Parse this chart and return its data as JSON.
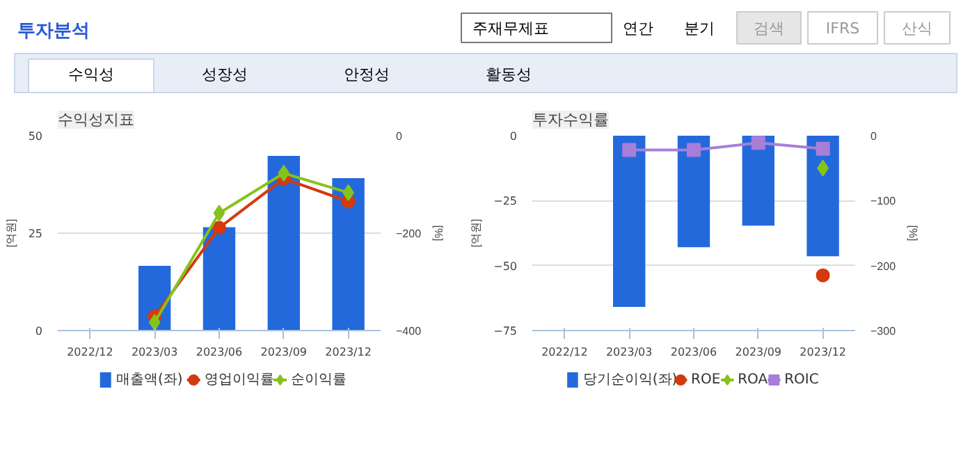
{
  "chart_data": [
    {
      "type": "other",
      "title": "투자분석",
      "annotations": [
        "주재무제표",
        "연간",
        "분기",
        "검색",
        "IFRS",
        "산식",
        "수익성",
        "성장성",
        "안정성",
        "활동성"
      ]
    },
    {
      "type": "bar",
      "title": "수익성지표",
      "ylabel": "[억원]",
      "y2label": "[%]",
      "categories": [
        "2022/12",
        "2023/03",
        "2023/06",
        "2023/09",
        "2023/12"
      ],
      "ylim": [
        0,
        50
      ],
      "yticks": [
        0,
        25,
        50
      ],
      "y2lim": [
        -400,
        0
      ],
      "y2ticks": [
        -400,
        -200,
        0
      ],
      "grid": "y",
      "legend": "bottom",
      "series": [
        {
          "name": "매출액(좌)",
          "type": "bar",
          "color": "#2369dc",
          "values": [
            null,
            16.6,
            26.5,
            44.8,
            39.1
          ]
        },
        {
          "name": "영업이익률",
          "type": "line",
          "axis": "y2",
          "marker": "circle",
          "color": "#d33a0e",
          "values": [
            null,
            -371,
            -189,
            -88,
            -135
          ]
        },
        {
          "name": "순이익률",
          "type": "line",
          "axis": "y2",
          "marker": "diamond",
          "color": "#86c21c",
          "values": [
            null,
            -383,
            -159,
            -77,
            -117
          ]
        }
      ]
    },
    {
      "type": "bar",
      "title": "투자수익률",
      "ylabel": "[억원]",
      "y2label": "[%]",
      "categories": [
        "2022/12",
        "2023/03",
        "2023/06",
        "2023/09",
        "2023/12"
      ],
      "ylim": [
        -75,
        0
      ],
      "yticks": [
        -75,
        -50,
        -25,
        0
      ],
      "y2lim": [
        -300,
        0
      ],
      "y2ticks": [
        -300,
        -200,
        -100,
        0
      ],
      "grid": "y",
      "legend": "bottom",
      "series": [
        {
          "name": "당기순이익(좌)",
          "type": "bar",
          "color": "#2369dc",
          "values": [
            null,
            -65.9,
            -42.9,
            -34.6,
            -46.4
          ]
        },
        {
          "name": "ROE",
          "type": "line",
          "axis": "y2",
          "marker": "circle",
          "color": "#d33a0e",
          "values": [
            null,
            null,
            null,
            null,
            -215
          ]
        },
        {
          "name": "ROA",
          "type": "line",
          "axis": "y2",
          "marker": "diamond",
          "color": "#86c21c",
          "values": [
            null,
            null,
            null,
            null,
            -50
          ]
        },
        {
          "name": "ROIC",
          "type": "line",
          "axis": "y2",
          "marker": "square",
          "color": "#a77fd9",
          "values": [
            null,
            -22,
            -22,
            -11,
            -20
          ]
        }
      ]
    }
  ]
}
